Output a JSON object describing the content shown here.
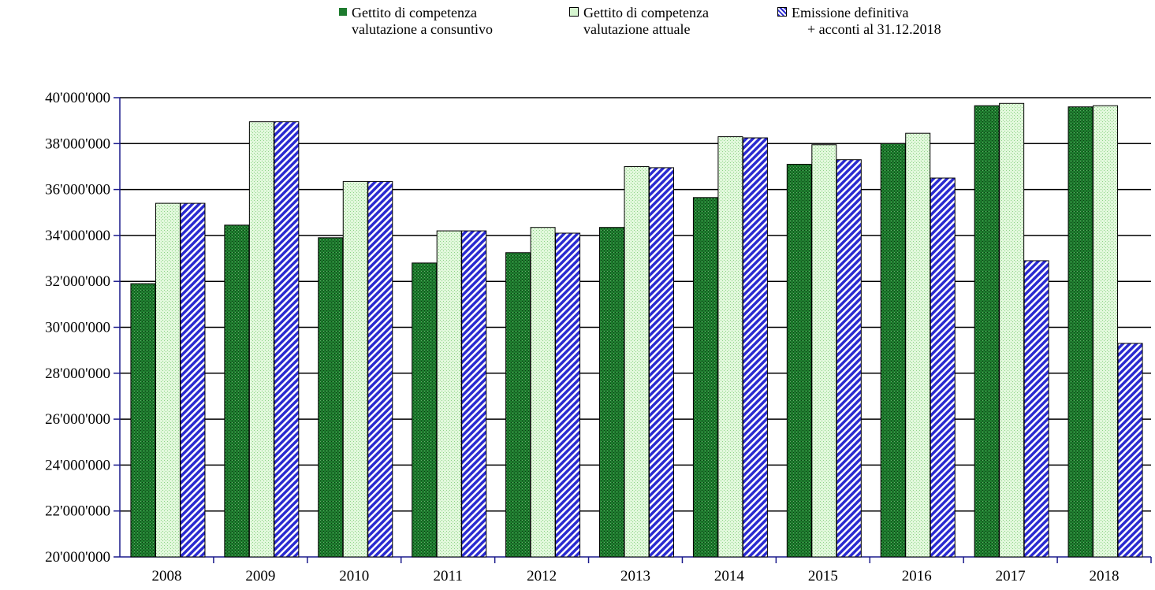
{
  "chart_data": {
    "type": "bar",
    "title": "",
    "xlabel": "",
    "ylabel": "",
    "ylim": [
      20000000,
      40000000
    ],
    "yticks": [
      20000000,
      22000000,
      24000000,
      26000000,
      28000000,
      30000000,
      32000000,
      34000000,
      36000000,
      38000000,
      40000000
    ],
    "ytick_labels": [
      "20'000'000",
      "22'000'000",
      "24'000'000",
      "26'000'000",
      "28'000'000",
      "30'000'000",
      "32'000'000",
      "34'000'000",
      "36'000'000",
      "38'000'000",
      "40'000'000"
    ],
    "categories": [
      "2008",
      "2009",
      "2010",
      "2011",
      "2012",
      "2013",
      "2014",
      "2015",
      "2016",
      "2017",
      "2018"
    ],
    "grid": "horizontal",
    "legend_position": "top",
    "series": [
      {
        "name_lines": [
          "Gettito di competenza",
          "valutazione a consuntivo"
        ],
        "color": "#1e7b2e",
        "pattern": "dark-green-dots",
        "values": [
          31900000,
          34450000,
          33900000,
          32800000,
          33250000,
          34350000,
          35650000,
          37100000,
          38000000,
          39650000,
          39600000
        ]
      },
      {
        "name_lines": [
          "Gettito di competenza",
          "valutazione attuale"
        ],
        "color": "#b8ecb0",
        "pattern": "light-green-dots",
        "values": [
          35400000,
          38950000,
          36350000,
          34200000,
          34350000,
          37000000,
          38300000,
          37950000,
          38450000,
          39750000,
          39650000
        ]
      },
      {
        "name_lines": [
          "Emissione definitiva",
          "+ acconti al 31.12.2018"
        ],
        "color": "#2a2ad0",
        "pattern": "blue-diagonal-stripes",
        "values": [
          35400000,
          38950000,
          36350000,
          34200000,
          34100000,
          36950000,
          38250000,
          37300000,
          36500000,
          32900000,
          29300000
        ]
      }
    ]
  }
}
